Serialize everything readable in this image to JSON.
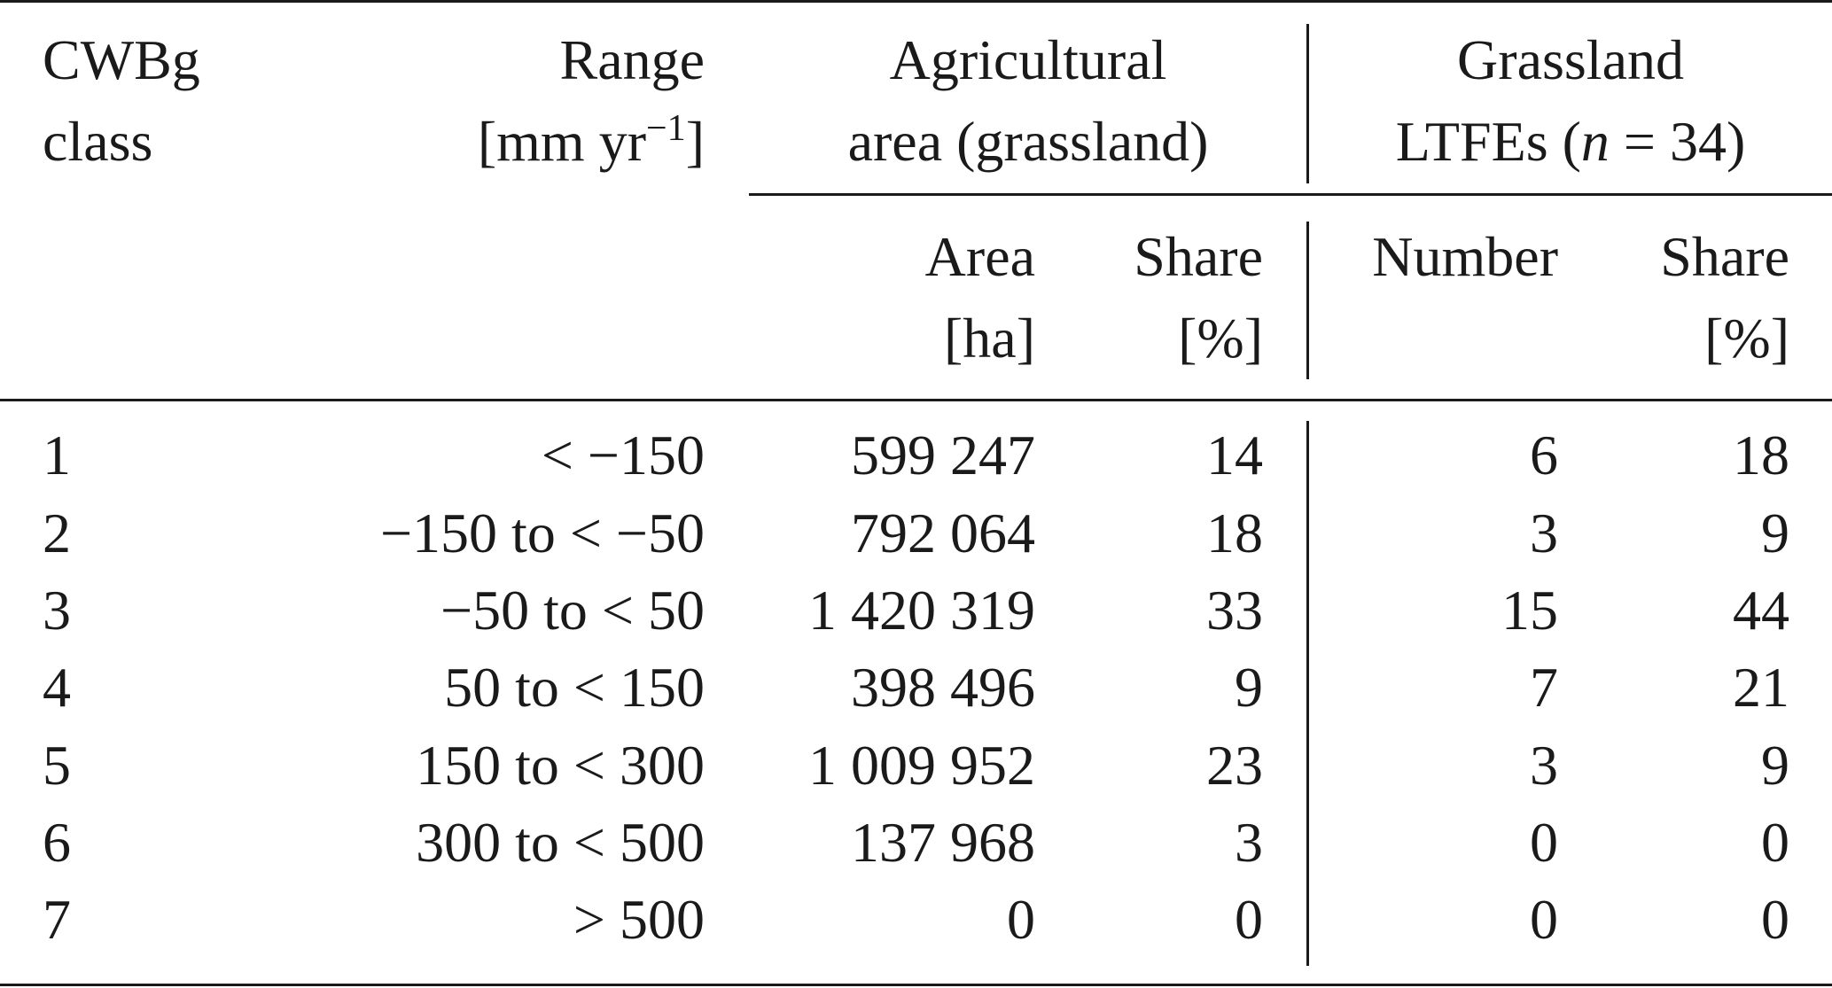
{
  "table": {
    "header": {
      "col_class": [
        "CWBg",
        "class"
      ],
      "col_range": [
        "Range",
        "[mm yr",
        "−1",
        "]"
      ],
      "group_agri": [
        "Agricultural",
        "area (grassland)"
      ],
      "group_ltfe": [
        "Grassland",
        "LTFEs (",
        "n",
        " = 34)"
      ],
      "sub_area": [
        "Area",
        "[ha]"
      ],
      "sub_share_agri": [
        "Share",
        "[%]"
      ],
      "sub_number": [
        "Number"
      ],
      "sub_share_ltfe": [
        "Share",
        "[%]"
      ]
    },
    "rows": [
      {
        "cls": "1",
        "range": "< −150",
        "area": "599 247",
        "share_agri": "14",
        "number": "6",
        "share_ltfe": "18"
      },
      {
        "cls": "2",
        "range": "−150 to < −50",
        "area": "792 064",
        "share_agri": "18",
        "number": "3",
        "share_ltfe": "9"
      },
      {
        "cls": "3",
        "range": "−50 to < 50",
        "area": "1 420 319",
        "share_agri": "33",
        "number": "15",
        "share_ltfe": "44"
      },
      {
        "cls": "4",
        "range": "50 to < 150",
        "area": "398 496",
        "share_agri": "9",
        "number": "7",
        "share_ltfe": "21"
      },
      {
        "cls": "5",
        "range": "150 to < 300",
        "area": "1 009 952",
        "share_agri": "23",
        "number": "3",
        "share_ltfe": "9"
      },
      {
        "cls": "6",
        "range": "300 to < 500",
        "area": "137 968",
        "share_agri": "3",
        "number": "0",
        "share_ltfe": "0"
      },
      {
        "cls": "7",
        "range": "> 500",
        "area": "0",
        "share_agri": "0",
        "number": "0",
        "share_ltfe": "0"
      }
    ]
  }
}
